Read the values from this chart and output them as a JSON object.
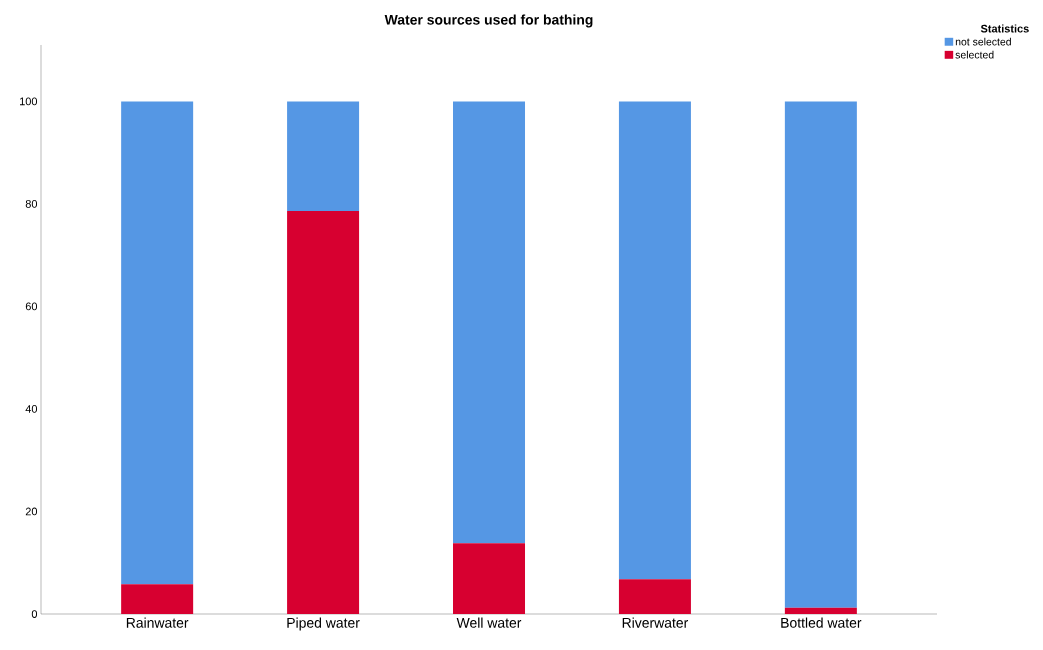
{
  "chart_data": {
    "type": "bar",
    "title": "Water sources used for bathing",
    "legend_title": "Statistics",
    "categories": [
      "Rainwater",
      "Piped water",
      "Well water",
      "Riverwater",
      "Bottled water"
    ],
    "stacked": true,
    "legend": "top right",
    "grid": false,
    "series": [
      {
        "name": "selected",
        "color": "#d70030",
        "values": [
          5.8,
          78.6,
          13.8,
          6.8,
          1.2
        ]
      },
      {
        "name": "not selected",
        "color": "#5597e4",
        "values": [
          94.2,
          21.4,
          86.2,
          93.2,
          98.8
        ]
      }
    ],
    "ylim": [
      0,
      111
    ],
    "yticks": [
      0,
      20,
      40,
      60,
      80,
      100
    ]
  }
}
